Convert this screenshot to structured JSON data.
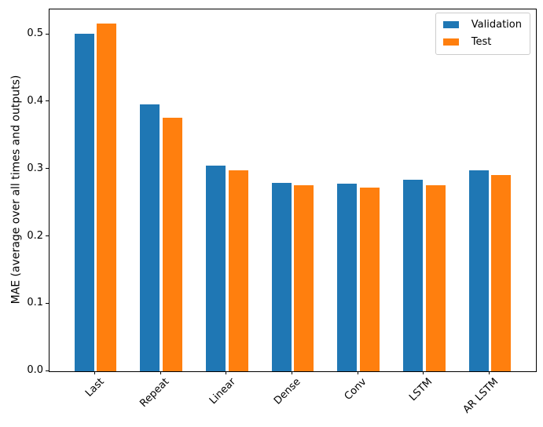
{
  "chart_data": {
    "type": "bar",
    "title": "",
    "xlabel": "",
    "ylabel": "MAE (average over all times and outputs)",
    "categories": [
      "Last",
      "Repeat",
      "Linear",
      "Dense",
      "Conv",
      "LSTM",
      "AR LSTM"
    ],
    "series": [
      {
        "name": "Validation",
        "color": "#1f77b4",
        "values": [
          0.501,
          0.396,
          0.305,
          0.28,
          0.279,
          0.285,
          0.298
        ]
      },
      {
        "name": "Test",
        "color": "#ff7f0e",
        "values": [
          0.516,
          0.377,
          0.298,
          0.276,
          0.273,
          0.276,
          0.291
        ]
      }
    ],
    "ylim": [
      0,
      0.5375
    ],
    "yticks": [
      0.0,
      0.1,
      0.2,
      0.3,
      0.4,
      0.5
    ],
    "ytick_labels": [
      "0.0",
      "0.1",
      "0.2",
      "0.3",
      "0.4",
      "0.5"
    ],
    "xtick_rotation": 45,
    "grid": false,
    "legend_position": "upper right",
    "axis_color": "#000000",
    "background_color": "#ffffff"
  }
}
